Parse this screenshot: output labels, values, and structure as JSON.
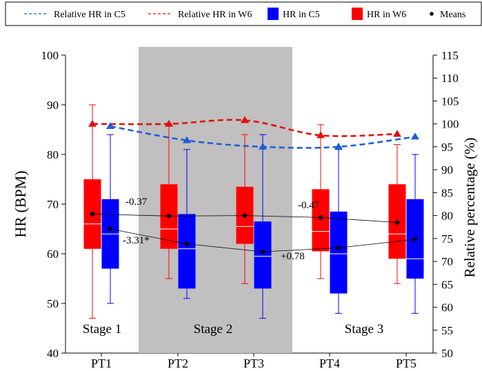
{
  "chart_data": {
    "type": "box",
    "categories": [
      "PT1",
      "PT2",
      "PT3",
      "PT4",
      "PT5"
    ],
    "ylabel": "HR (BPM)",
    "y2label": "Relative percentage (%)",
    "ylim": [
      40,
      100
    ],
    "y2lim": [
      50,
      115
    ],
    "yticks": [
      40,
      50,
      60,
      70,
      80,
      90,
      100
    ],
    "y2ticks": [
      50,
      55,
      60,
      65,
      70,
      75,
      80,
      85,
      90,
      95,
      100,
      105,
      110,
      115
    ],
    "legend": {
      "placement": "top",
      "entries": [
        {
          "label": "Relative HR in C5",
          "kind": "dashed-line",
          "color": "#1f5fd6"
        },
        {
          "label": "Relative HR in W6",
          "kind": "dashed-line",
          "color": "#e01010"
        },
        {
          "label": "HR in C5",
          "kind": "box",
          "color": "#0000ff"
        },
        {
          "label": "HR in W6",
          "kind": "box",
          "color": "#ff0000"
        },
        {
          "label": "Means",
          "kind": "dot",
          "color": "#000000"
        }
      ]
    },
    "boxes": [
      {
        "series": "HR in W6",
        "category": "PT1",
        "min": 47,
        "q1": 61,
        "median": 66,
        "q3": 75,
        "max": 90,
        "mean": 68
      },
      {
        "series": "HR in C5",
        "category": "PT1",
        "min": 50,
        "q1": 57,
        "median": 64,
        "q3": 71,
        "max": 84,
        "mean": 65
      },
      {
        "series": "HR in W6",
        "category": "PT2",
        "min": 55,
        "q1": 61,
        "median": 65,
        "q3": 74,
        "max": 86,
        "mean": 67.6
      },
      {
        "series": "HR in C5",
        "category": "PT2",
        "min": 51,
        "q1": 53,
        "median": 61,
        "q3": 68,
        "max": 81,
        "mean": 62
      },
      {
        "series": "HR in W6",
        "category": "PT3",
        "min": 54,
        "q1": 62,
        "median": 65.5,
        "q3": 73.5,
        "max": 84,
        "mean": 67.7
      },
      {
        "series": "HR in C5",
        "category": "PT3",
        "min": 47,
        "q1": 53,
        "median": 59.5,
        "q3": 66.5,
        "max": 84,
        "mean": 60.4
      },
      {
        "series": "HR in W6",
        "category": "PT4",
        "min": 55,
        "q1": 60.5,
        "median": 64.5,
        "q3": 73,
        "max": 86,
        "mean": 67.3
      },
      {
        "series": "HR in C5",
        "category": "PT4",
        "min": 48,
        "q1": 52,
        "median": 60,
        "q3": 68.5,
        "max": 81,
        "mean": 61.2
      },
      {
        "series": "HR in W6",
        "category": "PT5",
        "min": 54,
        "q1": 59,
        "median": 64,
        "q3": 74,
        "max": 82,
        "mean": 66.3
      },
      {
        "series": "HR in C5",
        "category": "PT5",
        "min": 48,
        "q1": 55,
        "median": 59,
        "q3": 71,
        "max": 80,
        "mean": 62.9
      }
    ],
    "relative_series": [
      {
        "name": "Relative HR in W6",
        "values": [
          100,
          100,
          100.8,
          97.5,
          97.8
        ]
      },
      {
        "name": "Relative HR in C5",
        "values": [
          99.5,
          96.4,
          95,
          95,
          97.2
        ]
      }
    ],
    "annotations": [
      {
        "text": "-0.37"
      },
      {
        "text": "-3.31*"
      },
      {
        "text": "-0.47"
      },
      {
        "text": "+0.78"
      }
    ],
    "stages": [
      "Stage 1",
      "Stage 2",
      "Stage 3"
    ]
  }
}
